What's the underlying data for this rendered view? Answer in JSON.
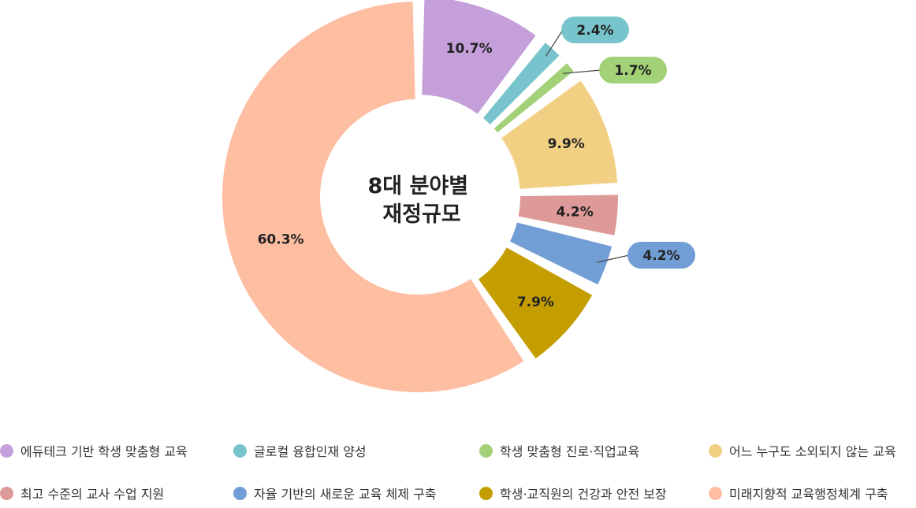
{
  "chart_data": {
    "type": "pie",
    "title": "8대 분야별\n재정규모",
    "title_lines": [
      "8대 분야별",
      "재정규모"
    ],
    "labels": [
      "에듀테크 기반 학생 맞춤형 교육",
      "글로컬 융합인재 양성",
      "학생 맞춤형 진로·직업교육",
      "어느 누구도 소외되지 않는 교육",
      "최고 수준의 교사 수업 지원",
      "자율 기반의 새로운 교육 체제 구축",
      "학생·교직원의 건강과 안전 보장",
      "미래지향적 교육행정체계 구축"
    ],
    "values": [
      10.7,
      2.4,
      1.7,
      9.9,
      4.2,
      4.2,
      7.9,
      60.3
    ],
    "value_labels": [
      "10.7%",
      "2.4%",
      "1.7%",
      "9.9%",
      "4.2%",
      "4.2%",
      "7.9%",
      "60.3%"
    ],
    "colors": [
      "#c49fd9",
      "#78c4cc",
      "#a3d177",
      "#f2d083",
      "#de9a98",
      "#729ed6",
      "#c49d00",
      "#fdbea2"
    ],
    "donut": true,
    "legend_position": "bottom"
  }
}
